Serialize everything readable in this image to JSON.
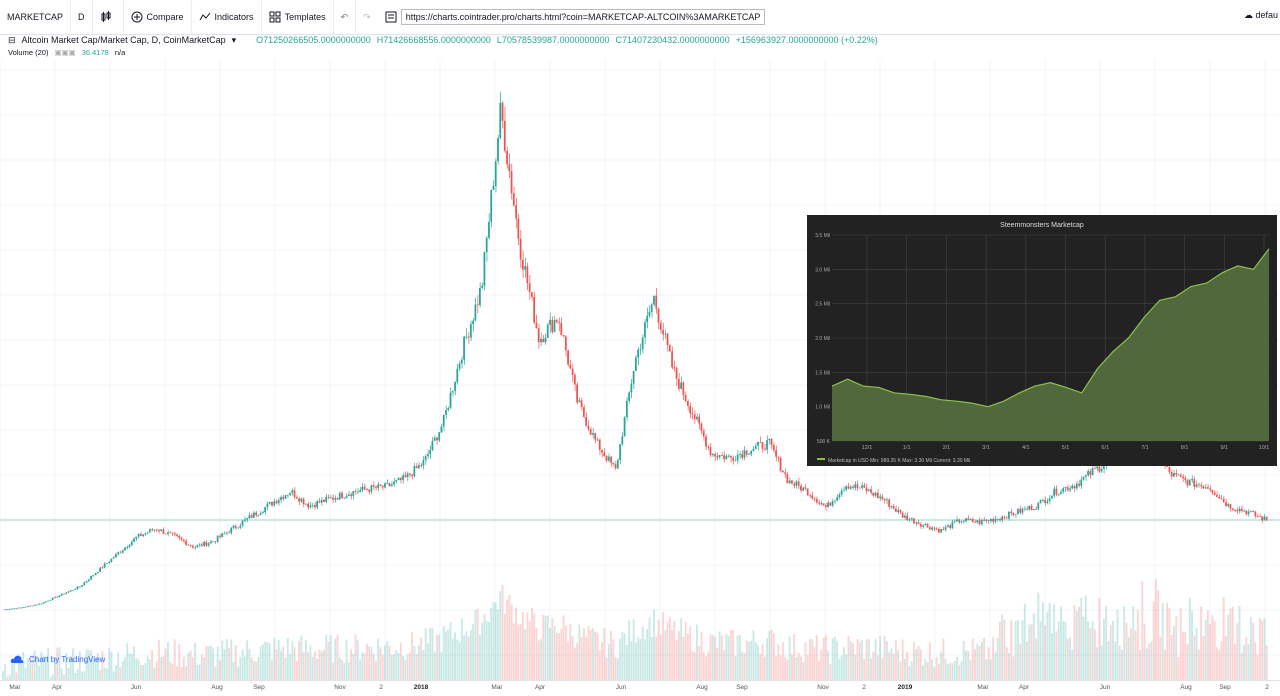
{
  "toolbar": {
    "symbol": "MARKETCAP",
    "interval": "D",
    "compare_label": "Compare",
    "indicators_label": "Indicators",
    "templates_label": "Templates",
    "url": "https://charts.cointrader.pro/charts.html?coin=MARKETCAP-ALTCOIN%3AMARKETCAP",
    "layout_label": "defau"
  },
  "legend": {
    "title": "Altcoin Market Cap/Market Cap, D, CoinMarketCap",
    "open": "O71250266505.0000000000",
    "high": "H71426668556.0000000000",
    "low": "L70578539987.0000000000",
    "close": "C71407230432.0000000000",
    "change": "+156963927.0000000000 (+0.22%)",
    "volume_label": "Volume (20)",
    "volume_value": "36.4178",
    "volume_na": "n/a"
  },
  "watermark": "Chart by TradingView",
  "colors": {
    "up": "#26a69a",
    "down": "#ef5350",
    "inset_bg": "#222222",
    "inset_line": "#8bc34a"
  },
  "chart_data": [
    {
      "type": "line",
      "title": "Altcoin Market Cap/Market Cap, D, CoinMarketCap",
      "x_ticks": [
        "Mar",
        "Apr",
        "Jun",
        "Aug",
        "Sep",
        "Nov",
        "2",
        "2018",
        "Mar",
        "Apr",
        "Jun",
        "Aug",
        "Sep",
        "Nov",
        "2",
        "2019",
        "Mar",
        "Apr",
        "Jun",
        "Aug",
        "Sep",
        "2"
      ],
      "series": [
        {
          "values": [
            0.5,
            0.6,
            0.8,
            1.2,
            1.6,
            2.4,
            3.2,
            4.0,
            4.4,
            4.0,
            3.5,
            3.8,
            4.4,
            5.0,
            5.6,
            6.2,
            5.5,
            5.8,
            6.1,
            6.3,
            6.4,
            6.8,
            7.6,
            9.5,
            13.0,
            16.0,
            24.5,
            18.0,
            13.5,
            14.6,
            10.5,
            8.5,
            7.2,
            12.4,
            15.5,
            12.0,
            10.0,
            8.0,
            7.8,
            8.2,
            8.5,
            6.7,
            6.2,
            5.4,
            6.5,
            6.3,
            5.8,
            5.0,
            4.6,
            4.3,
            4.8,
            4.7,
            4.9,
            5.2,
            5.5,
            6.2,
            6.5,
            7.2,
            7.8,
            8.8,
            8.2,
            7.0,
            6.6,
            6.4,
            5.5,
            5.2,
            4.8
          ]
        }
      ]
    },
    {
      "type": "area",
      "title": "Steemmonsters Marketcap",
      "legend": "Marketcap in USD  Min: 989.35 K  Max: 3.30 Mil  Current: 3.30 Mil",
      "y_ticks": [
        "500 K",
        "1.0 Mil",
        "1.5 Mil",
        "2.0 Mil",
        "2.5 Mil",
        "3.0 Mil",
        "3.5 Mil"
      ],
      "x_ticks": [
        "12/1",
        "1/1",
        "2/1",
        "3/1",
        "4/1",
        "5/1",
        "6/1",
        "7/1",
        "8/1",
        "9/1",
        "10/1"
      ],
      "ylim": [
        0.5,
        3.5
      ],
      "series": [
        {
          "name": "Marketcap in USD",
          "values": [
            1.3,
            1.4,
            1.3,
            1.28,
            1.2,
            1.18,
            1.15,
            1.1,
            1.08,
            1.05,
            1.0,
            1.08,
            1.2,
            1.3,
            1.35,
            1.28,
            1.2,
            1.55,
            1.8,
            2.0,
            2.3,
            2.55,
            2.6,
            2.75,
            2.8,
            2.95,
            3.05,
            3.0,
            3.3
          ]
        }
      ]
    }
  ]
}
